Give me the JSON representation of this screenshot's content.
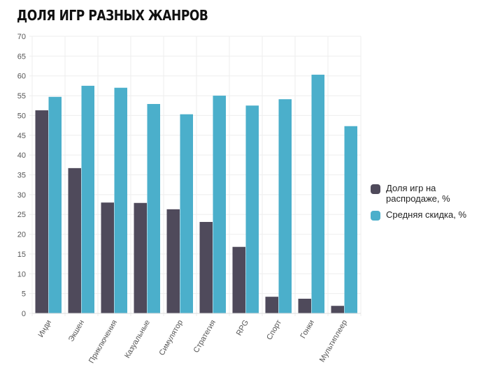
{
  "chart_data": {
    "type": "bar",
    "title": "ДОЛЯ ИГР РАЗНЫХ ЖАНРОВ",
    "categories": [
      "Инди",
      "Экшен",
      "Приключения",
      "Казуальные",
      "Симулятор",
      "Стратегия",
      "RPG",
      "Спорт",
      "Гонки",
      "Мультиплеер"
    ],
    "series": [
      {
        "name": "Доля игр на распродаже, %",
        "color": "#4f4a5b",
        "values": [
          51.3,
          36.7,
          28.0,
          27.9,
          26.3,
          23.1,
          16.8,
          4.2,
          3.7,
          1.9
        ]
      },
      {
        "name": "Средняя скидка, %",
        "color": "#4bafcb",
        "values": [
          54.7,
          57.5,
          57.0,
          52.9,
          50.3,
          55.0,
          52.5,
          54.1,
          60.3,
          47.3
        ]
      }
    ],
    "ylim": [
      0,
      70
    ],
    "yticks": [
      0,
      5,
      10,
      15,
      20,
      25,
      30,
      35,
      40,
      45,
      50,
      55,
      60,
      65,
      70
    ],
    "grid": true,
    "legend": "right"
  }
}
